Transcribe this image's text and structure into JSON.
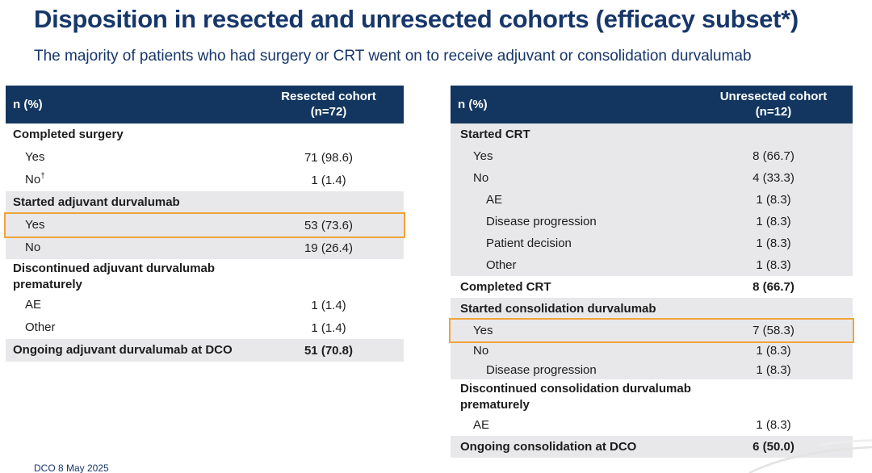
{
  "slide": {
    "title": "Disposition in resected and unresected cohorts (efficacy subset*)",
    "subtitle": "The majority of patients who had surgery or CRT went on to receive adjuvant or consolidation durvalumab",
    "footnote": "DCO 8 May 2025"
  },
  "colors": {
    "header_bg": "#12365F",
    "title_text": "#17376A",
    "row_shade_gray": "#E8E8EA",
    "highlight_outline": "#F1A33B",
    "corner_swoosh": "#E3E3E3"
  },
  "tables": [
    {
      "id": "resected-cohort-table",
      "col1_header": "n (%)",
      "col2_header": "Resected cohort\n(n=72)",
      "rows": [
        {
          "label": "Completed surgery",
          "value": "",
          "bold": true,
          "indent": 0,
          "shade": "white"
        },
        {
          "label": "Yes",
          "value": "71 (98.6)",
          "indent": 1,
          "shade": "white"
        },
        {
          "label": "No",
          "sup": "†",
          "value": "1 (1.4)",
          "indent": 1,
          "shade": "white"
        },
        {
          "label": "Started adjuvant durvalumab",
          "value": "",
          "bold": true,
          "indent": 0,
          "shade": "gray"
        },
        {
          "label": "Yes",
          "value": "53 (73.6)",
          "indent": 1,
          "shade": "gray",
          "highlight": true
        },
        {
          "label": "No",
          "value": "19 (26.4)",
          "indent": 1,
          "shade": "gray"
        },
        {
          "label": "Discontinued adjuvant durvalumab prematurely",
          "value": "",
          "bold": true,
          "indent": 0,
          "shade": "white"
        },
        {
          "label": "AE",
          "value": "1 (1.4)",
          "indent": 1,
          "shade": "white"
        },
        {
          "label": "Other",
          "value": "1 (1.4)",
          "indent": 1,
          "shade": "white"
        },
        {
          "label": "Ongoing adjuvant durvalumab at DCO",
          "value": "51 (70.8)",
          "bold": true,
          "indent": 0,
          "shade": "gray"
        }
      ]
    },
    {
      "id": "unresected-cohort-table",
      "col1_header": "n (%)",
      "col2_header": "Unresected cohort\n(n=12)",
      "rows": [
        {
          "label": "Started CRT",
          "value": "",
          "bold": true,
          "indent": 0,
          "shade": "gray"
        },
        {
          "label": "Yes",
          "value": "8 (66.7)",
          "indent": 1,
          "shade": "gray"
        },
        {
          "label": "No",
          "value": "4 (33.3)",
          "indent": 1,
          "shade": "gray"
        },
        {
          "label": "AE",
          "value": "1 (8.3)",
          "indent": 2,
          "shade": "gray"
        },
        {
          "label": "Disease progression",
          "value": "1 (8.3)",
          "indent": 2,
          "shade": "gray"
        },
        {
          "label": "Patient decision",
          "value": "1 (8.3)",
          "indent": 2,
          "shade": "gray"
        },
        {
          "label": "Other",
          "value": "1 (8.3)",
          "indent": 2,
          "shade": "gray"
        },
        {
          "label": "Completed CRT",
          "value": "8 (66.7)",
          "bold": true,
          "indent": 0,
          "shade": "white"
        },
        {
          "label": "Started consolidation durvalumab",
          "value": "",
          "bold": true,
          "indent": 0,
          "shade": "gray"
        },
        {
          "label": "Yes",
          "value": "7 (58.3)",
          "indent": 1,
          "shade": "gray",
          "highlight": true
        },
        {
          "label": "No",
          "value": "1 (8.3)",
          "indent": 1,
          "shade": "gray",
          "compact": true
        },
        {
          "label": "Disease progression",
          "value": "1 (8.3)",
          "indent": 2,
          "shade": "gray",
          "compact": true
        },
        {
          "label": "Discontinued consolidation durvalumab prematurely",
          "value": "",
          "bold": true,
          "indent": 0,
          "shade": "white"
        },
        {
          "label": "AE",
          "value": "1 (8.3)",
          "indent": 1,
          "shade": "white"
        },
        {
          "label": "Ongoing consolidation at DCO",
          "value": "6 (50.0)",
          "bold": true,
          "indent": 0,
          "shade": "gray"
        }
      ]
    }
  ]
}
